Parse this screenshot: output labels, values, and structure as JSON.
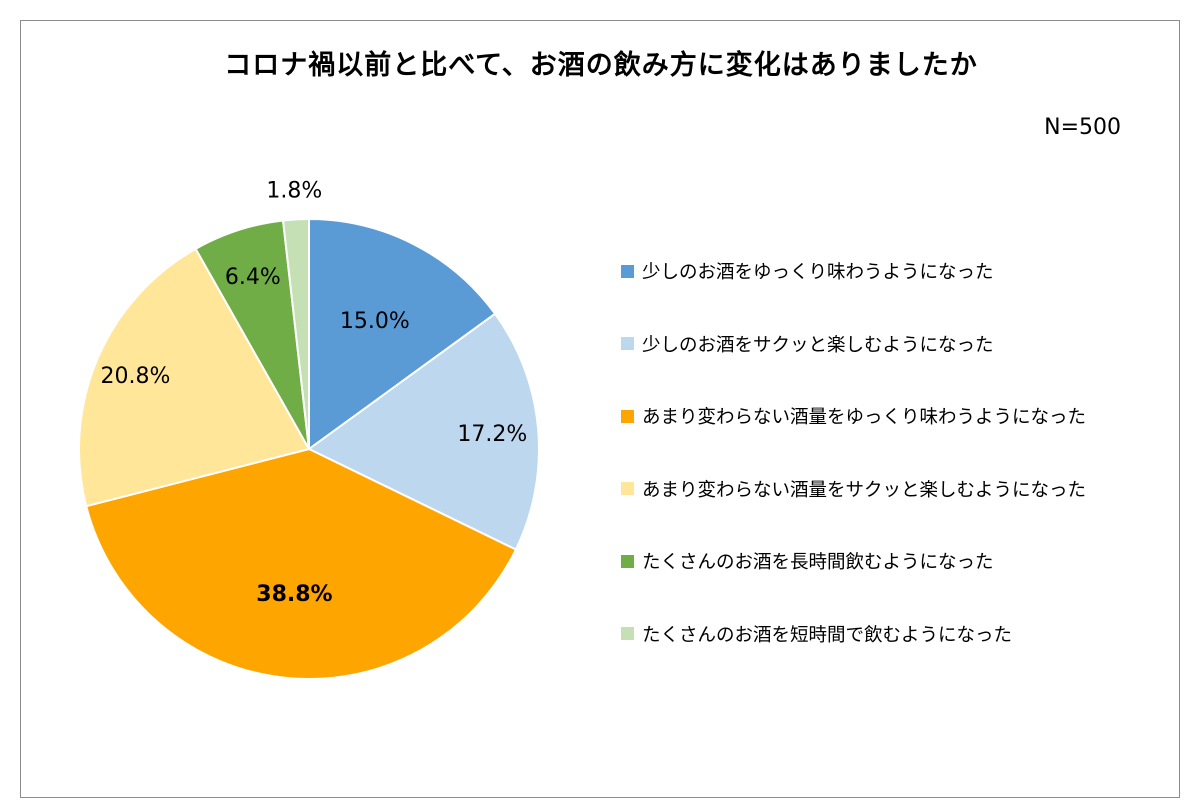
{
  "chart_data": {
    "type": "pie",
    "title": "コロナ禍以前と比べて、お酒の飲み方に変化はありましたか",
    "note": "N=500",
    "legend_position": "right",
    "slices": [
      {
        "label": "少しのお酒をゆっくり味わうようになった",
        "value": 15.0,
        "display": "15.0%",
        "color": "#5b9bd5"
      },
      {
        "label": "少しのお酒をサクッと楽しむようになった",
        "value": 17.2,
        "display": "17.2%",
        "color": "#bdd7ee"
      },
      {
        "label": "あまり変わらない酒量をゆっくり味わうようになった",
        "value": 38.8,
        "display": "38.8%",
        "color": "#ffa500",
        "bold": true
      },
      {
        "label": "あまり変わらない酒量をサクッと楽しむようになった",
        "value": 20.8,
        "display": "20.8%",
        "color": "#ffe699"
      },
      {
        "label": "たくさんのお酒を長時間飲むようになった",
        "value": 6.4,
        "display": "6.4%",
        "color": "#70ad47"
      },
      {
        "label": "たくさんのお酒を短時間で飲むようになった",
        "value": 1.8,
        "display": "1.8%",
        "color": "#c5e0b4"
      }
    ]
  }
}
